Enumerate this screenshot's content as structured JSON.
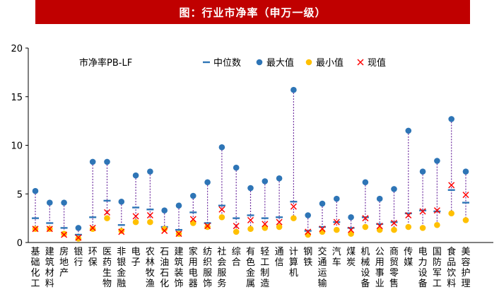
{
  "chart_data": {
    "type": "scatter",
    "title": "图：行业市净率（申万一级）",
    "subtitle": "市净率PB-LF",
    "ylim": [
      0,
      20
    ],
    "yticks": [
      0,
      5,
      10,
      15,
      20
    ],
    "legend": [
      {
        "key": "median",
        "label": "中位数"
      },
      {
        "key": "max",
        "label": "最大值"
      },
      {
        "key": "min",
        "label": "最小值"
      },
      {
        "key": "current",
        "label": "现值"
      }
    ],
    "categories": [
      "基础化工",
      "建筑材料",
      "房地产",
      "银行",
      "环保",
      "医药生物",
      "非银金融",
      "电子",
      "农林牧渔",
      "石油石化",
      "建筑装饰",
      "家用电器",
      "纺织服饰",
      "社会服务",
      "综合",
      "有色金属",
      "轻工制造",
      "通信",
      "计算机",
      "钢铁",
      "交通运输",
      "汽车",
      "煤炭",
      "机械设备",
      "公用事业",
      "商贸零售",
      "传媒",
      "电力设备",
      "国防军工",
      "食品饮料",
      "美容护理"
    ],
    "series": [
      {
        "name": "最大值",
        "key": "max",
        "values": [
          5.3,
          4.1,
          4.1,
          1.5,
          8.3,
          8.3,
          4.2,
          6.9,
          7.3,
          3.3,
          3.8,
          4.8,
          6.2,
          9.8,
          7.7,
          5.6,
          6.3,
          6.6,
          15.7,
          2.8,
          4.0,
          4.5,
          2.6,
          6.2,
          4.5,
          5.5,
          11.5,
          7.3,
          8.4,
          12.7,
          7.3
        ]
      },
      {
        "name": "中位数",
        "key": "median",
        "values": [
          2.5,
          2.0,
          1.5,
          0.8,
          2.6,
          4.3,
          1.8,
          3.6,
          3.4,
          1.6,
          1.3,
          3.1,
          2.0,
          3.8,
          2.5,
          2.8,
          2.5,
          2.6,
          4.2,
          1.2,
          1.6,
          2.1,
          1.5,
          2.6,
          1.9,
          2.1,
          3.0,
          3.3,
          3.2,
          5.4,
          4.1
        ]
      },
      {
        "name": "最小值",
        "key": "min",
        "values": [
          1.4,
          1.4,
          0.9,
          0.4,
          1.4,
          2.5,
          1.2,
          2.1,
          2.1,
          1.4,
          0.9,
          2.0,
          1.6,
          2.6,
          1.1,
          1.4,
          1.5,
          1.6,
          2.5,
          0.8,
          1.1,
          1.3,
          0.9,
          1.6,
          1.3,
          1.3,
          1.6,
          1.5,
          1.8,
          3.0,
          2.3
        ]
      },
      {
        "name": "现值",
        "key": "current",
        "values": [
          1.4,
          1.4,
          0.8,
          0.5,
          1.5,
          3.1,
          1.1,
          2.7,
          2.8,
          1.2,
          0.9,
          2.4,
          1.7,
          3.4,
          1.7,
          2.3,
          1.9,
          2.1,
          3.7,
          1.1,
          1.4,
          2.1,
          1.3,
          2.5,
          1.7,
          2.0,
          2.8,
          3.2,
          3.3,
          5.9,
          4.9
        ]
      }
    ],
    "colors": {
      "max": "#2e75b6",
      "min": "#ffc000",
      "median": "#2e75b6",
      "current": "#ff0000",
      "range_line": "#7030a0",
      "title_bg": "#c00000"
    }
  }
}
